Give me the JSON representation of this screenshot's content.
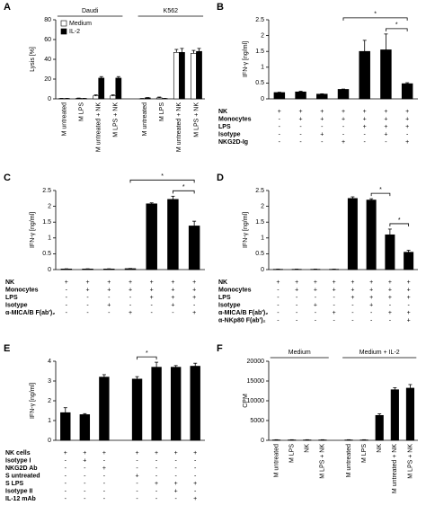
{
  "chart_data": [
    {
      "type": "bar",
      "label": "A",
      "ylabel": "Lysis [%]",
      "ylim": [
        0,
        80
      ],
      "yticks": [
        0,
        20,
        40,
        60,
        80
      ],
      "categories": [
        "M untreated",
        "M LPS",
        "M untreated + NK",
        "M LPS + NK",
        "M untreated",
        "M LPS",
        "M untreated + NK",
        "M LPS + NK"
      ],
      "groups": [
        {
          "label": "Daudi",
          "span": 4
        },
        {
          "label": "K562",
          "span": 4
        }
      ],
      "series": [
        {
          "name": "Medium",
          "color": "#ffffff",
          "values": [
            0.3,
            0.5,
            3,
            3,
            0.2,
            1,
            47,
            46
          ],
          "errors": [
            0.2,
            0.3,
            1,
            1,
            0.2,
            0.8,
            3,
            3
          ]
        },
        {
          "name": "IL-2",
          "color": "#000000",
          "values": [
            0.3,
            0.3,
            21,
            21,
            1,
            0.3,
            47,
            48
          ],
          "errors": [
            0.2,
            0.2,
            1.5,
            1.5,
            0.3,
            0.2,
            4,
            3
          ]
        }
      ]
    },
    {
      "type": "bar",
      "label": "B",
      "ylabel": "IFN-γ [ng/ml]",
      "ylim": [
        0,
        2.5
      ],
      "yticks": [
        0,
        0.5,
        1,
        1.5,
        2,
        2.5
      ],
      "color": "#000000",
      "values": [
        0.2,
        0.22,
        0.15,
        0.3,
        1.5,
        1.55,
        0.48
      ],
      "errors": [
        0.01,
        0.02,
        0.01,
        0.01,
        0.35,
        0.5,
        0.03
      ],
      "rows": [
        {
          "label": "NK",
          "marks": [
            "+",
            "+",
            "+",
            "+",
            "+",
            "+",
            "+"
          ]
        },
        {
          "label": "Monocytes",
          "marks": [
            "-",
            "+",
            "+",
            "+",
            "+",
            "+",
            "+"
          ]
        },
        {
          "label": "LPS",
          "marks": [
            "-",
            "-",
            "-",
            "-",
            "+",
            "+",
            "+"
          ]
        },
        {
          "label": "Isotype",
          "marks": [
            "-",
            "-",
            "+",
            "-",
            "-",
            "+",
            "-"
          ]
        },
        {
          "label": "NKG2D-Ig",
          "marks": [
            "-",
            "-",
            "-",
            "+",
            "-",
            "-",
            "+"
          ]
        }
      ],
      "brackets": [
        {
          "from": 3,
          "to": 6,
          "label": "*"
        },
        {
          "from": 5,
          "to": 6,
          "label": "*"
        }
      ]
    },
    {
      "type": "bar",
      "label": "C",
      "ylabel": "IFN-γ [ng/ml]",
      "ylim": [
        0,
        2.5
      ],
      "yticks": [
        0,
        0.5,
        1,
        1.5,
        2,
        2.5
      ],
      "color": "#000000",
      "values": [
        0.02,
        0.02,
        0.02,
        0.03,
        2.08,
        2.22,
        1.38
      ],
      "errors": [
        0.005,
        0.005,
        0.005,
        0.005,
        0.03,
        0.1,
        0.15
      ],
      "rows": [
        {
          "label": "NK",
          "marks": [
            "+",
            "+",
            "+",
            "+",
            "+",
            "+",
            "+"
          ]
        },
        {
          "label": "Monocytes",
          "marks": [
            "-",
            "+",
            "+",
            "+",
            "+",
            "+",
            "+"
          ]
        },
        {
          "label": "LPS",
          "marks": [
            "-",
            "-",
            "-",
            "-",
            "+",
            "+",
            "+"
          ]
        },
        {
          "label": "Isotype",
          "marks": [
            "-",
            "-",
            "+",
            "-",
            "-",
            "+",
            "-"
          ]
        },
        {
          "label": "α-MICA/B F(ab')₂",
          "marks": [
            "-",
            "-",
            "-",
            "+",
            "-",
            "-",
            "+"
          ]
        }
      ],
      "brackets": [
        {
          "from": 3,
          "to": 6,
          "label": "*"
        },
        {
          "from": 5,
          "to": 6,
          "label": "*"
        }
      ]
    },
    {
      "type": "bar",
      "label": "D",
      "ylabel": "IFN-γ [ng/ml]",
      "ylim": [
        0,
        2.5
      ],
      "yticks": [
        0,
        0.5,
        1,
        1.5,
        2,
        2.5
      ],
      "color": "#000000",
      "values": [
        0.01,
        0.01,
        0.01,
        0.01,
        2.25,
        2.2,
        1.1,
        0.55
      ],
      "errors": [
        0.005,
        0.005,
        0.005,
        0.005,
        0.05,
        0.04,
        0.18,
        0.06
      ],
      "rows": [
        {
          "label": "NK",
          "marks": [
            "+",
            "+",
            "+",
            "+",
            "+",
            "+",
            "+",
            "+"
          ]
        },
        {
          "label": "Monocytes",
          "marks": [
            "-",
            "+",
            "+",
            "+",
            "+",
            "+",
            "+",
            "+"
          ]
        },
        {
          "label": "LPS",
          "marks": [
            "-",
            "-",
            "-",
            "-",
            "+",
            "+",
            "+",
            "+"
          ]
        },
        {
          "label": "Isotype",
          "marks": [
            "-",
            "-",
            "+",
            "-",
            "-",
            "+",
            "-",
            "-"
          ]
        },
        {
          "label": "α-MICA/B F(ab')₂",
          "marks": [
            "-",
            "-",
            "-",
            "+",
            "-",
            "-",
            "+",
            "+"
          ]
        },
        {
          "label": "α-NKp80 F(ab')₂",
          "marks": [
            "-",
            "-",
            "-",
            "-",
            "-",
            "-",
            "-",
            "+"
          ]
        }
      ],
      "brackets": [
        {
          "from": 5,
          "to": 6,
          "label": "*"
        },
        {
          "from": 6,
          "to": 7,
          "label": "*"
        }
      ]
    },
    {
      "type": "bar",
      "label": "E",
      "ylabel": "IFN-γ [ng/ml]",
      "ylim": [
        0,
        4
      ],
      "yticks": [
        0,
        1,
        2,
        3,
        4
      ],
      "color": "#000000",
      "values": [
        1.4,
        1.3,
        3.2,
        3.1,
        3.7,
        3.7,
        3.75
      ],
      "errors": [
        0.25,
        0.05,
        0.12,
        0.12,
        0.25,
        0.08,
        0.15
      ],
      "groups": [
        {
          "span": 3
        },
        {
          "span": 4
        }
      ],
      "rows": [
        {
          "label": "NK cells",
          "marks": [
            "+",
            "+",
            "+",
            "+",
            "+",
            "+",
            "+"
          ]
        },
        {
          "label": "Isotype I",
          "marks": [
            "-",
            "+",
            "-",
            "-",
            "-",
            "-",
            "-"
          ]
        },
        {
          "label": "NKG2D Ab",
          "marks": [
            "-",
            "-",
            "+",
            "-",
            "-",
            "-",
            "-"
          ]
        },
        {
          "label": "S untreated",
          "marks": [
            "-",
            "-",
            "-",
            "+",
            "-",
            "-",
            "-"
          ]
        },
        {
          "label": "S LPS",
          "marks": [
            "-",
            "-",
            "-",
            "-",
            "+",
            "+",
            "+"
          ]
        },
        {
          "label": "Isotype II",
          "marks": [
            "-",
            "-",
            "-",
            "-",
            "-",
            "+",
            "-"
          ]
        },
        {
          "label": "IL-12 mAb",
          "marks": [
            "-",
            "-",
            "-",
            "-",
            "-",
            "-",
            "+"
          ]
        }
      ],
      "brackets": [
        {
          "from": 3,
          "to": 4,
          "label": "*"
        }
      ]
    },
    {
      "type": "bar",
      "label": "F",
      "ylabel": "CPM",
      "ylim": [
        0,
        20000
      ],
      "yticks": [
        0,
        5000,
        10000,
        15000,
        20000
      ],
      "color": "#000000",
      "categories": [
        "M untreated",
        "M LPS",
        "NK",
        "M LPS + NK",
        "M untreated",
        "M LPS",
        "NK",
        "M untreated + NK",
        "M LPS + NK"
      ],
      "groups": [
        {
          "label": "Medium",
          "span": 4
        },
        {
          "label": "Medium + IL-2",
          "span": 5
        }
      ],
      "values": [
        100,
        100,
        100,
        100,
        100,
        100,
        6300,
        12800,
        13200
      ],
      "errors": [
        50,
        50,
        50,
        50,
        50,
        50,
        400,
        500,
        900
      ]
    }
  ]
}
